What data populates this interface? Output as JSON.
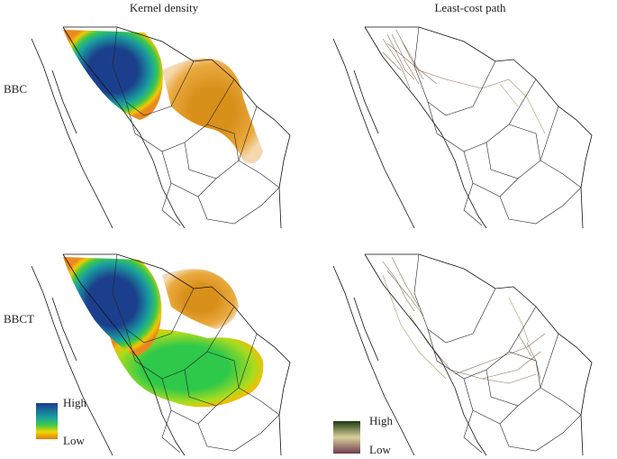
{
  "columns": [
    "Kernel density",
    "Least-cost path"
  ],
  "rows": [
    "BBC",
    "BBCT"
  ],
  "legends": [
    {
      "high": "High",
      "low": "Low"
    },
    {
      "high": "High",
      "low": "Low"
    }
  ]
}
